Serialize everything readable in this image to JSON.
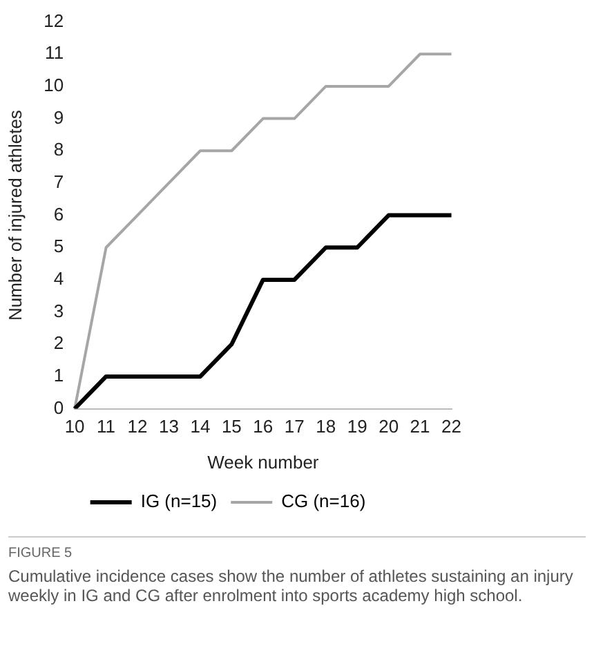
{
  "chart_data": {
    "type": "line",
    "xlabel": "Week number",
    "ylabel": "Number of injured athletes",
    "categories": [
      "10",
      "11",
      "12",
      "13",
      "14",
      "15",
      "16",
      "17",
      "18",
      "19",
      "20",
      "21",
      "22"
    ],
    "series": [
      {
        "name": "IG (n=15)",
        "color": "#000000",
        "values": [
          0,
          1,
          1,
          1,
          1,
          2,
          4,
          4,
          5,
          5,
          6,
          6,
          6
        ]
      },
      {
        "name": "CG (n=16)",
        "color": "#a6a6a6",
        "values": [
          0,
          5,
          6,
          7,
          8,
          8,
          9,
          9,
          10,
          10,
          10,
          11,
          11
        ]
      }
    ],
    "ylim": [
      0,
      12
    ],
    "yticks": [
      0,
      1,
      2,
      3,
      4,
      5,
      6,
      7,
      8,
      9,
      10,
      11,
      12
    ],
    "grid": false,
    "legend": "bottom",
    "marker": "none",
    "line_style": "solid",
    "annotations": [
      "FIGURE 5",
      "Cumulative incidence cases show the number of athletes sustaining an injury weekly in IG and CG after enrolment into sports academy high school."
    ]
  }
}
